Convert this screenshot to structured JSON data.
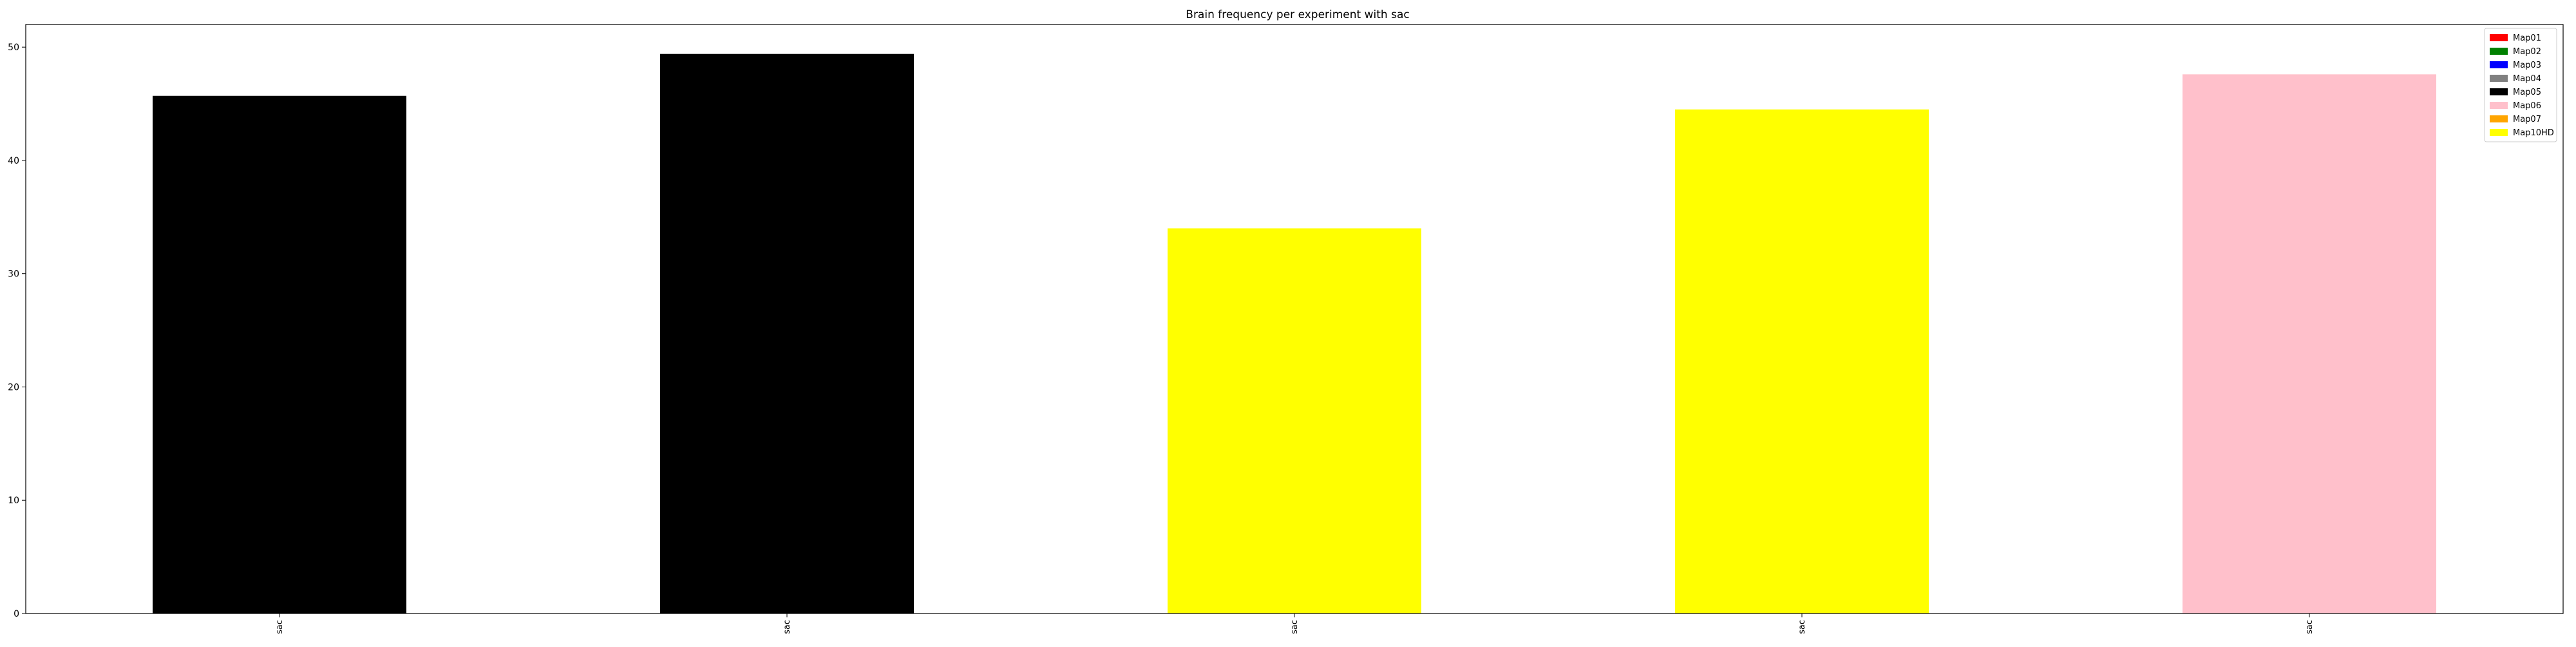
{
  "chart_data": {
    "type": "bar",
    "title": "Brain frequency per experiment with sac",
    "xlabel": "",
    "ylabel": "",
    "categories": [
      "sac",
      "sac",
      "sac",
      "sac",
      "sac"
    ],
    "values": [
      45.7,
      49.4,
      34.0,
      44.5,
      47.6
    ],
    "bar_colors": [
      "#000000",
      "#000000",
      "#ffff00",
      "#ffff00",
      "#ffc0cb"
    ],
    "ylim": [
      0,
      52
    ],
    "yticks": [
      0,
      10,
      20,
      30,
      40,
      50
    ],
    "grid": false,
    "legend": {
      "position": "top-right",
      "entries": [
        {
          "label": "Map01",
          "color": "#ff0000"
        },
        {
          "label": "Map02",
          "color": "#008000"
        },
        {
          "label": "Map03",
          "color": "#0000ff"
        },
        {
          "label": "Map04",
          "color": "#808080"
        },
        {
          "label": "Map05",
          "color": "#000000"
        },
        {
          "label": "Map06",
          "color": "#ffc0cb"
        },
        {
          "label": "Map07",
          "color": "#ffa500"
        },
        {
          "label": "Map10HD",
          "color": "#ffff00"
        }
      ]
    }
  }
}
